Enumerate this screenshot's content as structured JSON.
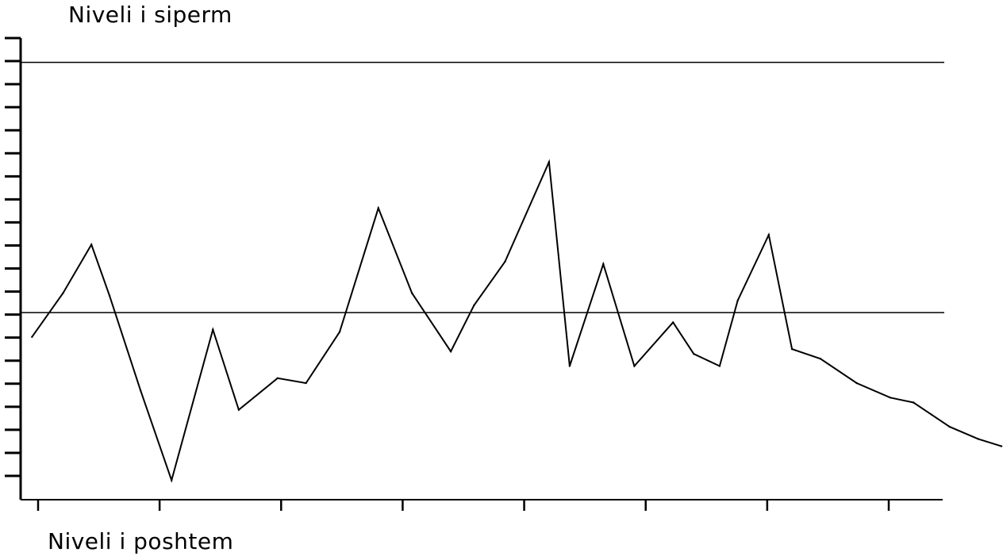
{
  "chart_data": {
    "type": "line",
    "title": "",
    "xlabel": "",
    "ylabel": "",
    "upper_level_label": "Niveli i siperm",
    "lower_level_label": "Niveli i poshtem",
    "upper_level": 18,
    "center_level": 7.7,
    "ylim": [
      0,
      19
    ],
    "xlim": [
      0,
      38
    ],
    "y_tick_count": 20,
    "x_tick_count": 8,
    "grid": false,
    "series": [
      {
        "x": [
          0.5,
          1.7,
          2.8,
          3.5,
          4.7,
          5.9,
          7.5,
          8.5,
          10.0,
          11.1,
          12.4,
          13.9,
          15.2,
          16.7,
          17.6,
          18.8,
          20.5,
          21.3,
          22.6,
          23.8,
          25.3,
          26.1,
          27.1,
          27.8,
          29.0,
          29.9,
          31.0,
          32.4,
          33.7,
          34.6,
          35.3,
          36.0,
          37.1,
          38.0
        ],
        "values": [
          6.7,
          8.5,
          10.5,
          8.4,
          4.5,
          0.8,
          7.0,
          3.7,
          5.0,
          4.8,
          6.9,
          12.0,
          8.5,
          6.1,
          8.0,
          9.8,
          13.9,
          5.5,
          9.7,
          5.5,
          7.3,
          6.0,
          5.5,
          8.2,
          10.9,
          6.2,
          5.8,
          4.8,
          4.2,
          4.0,
          3.5,
          3.0,
          2.5,
          2.2
        ]
      }
    ]
  }
}
